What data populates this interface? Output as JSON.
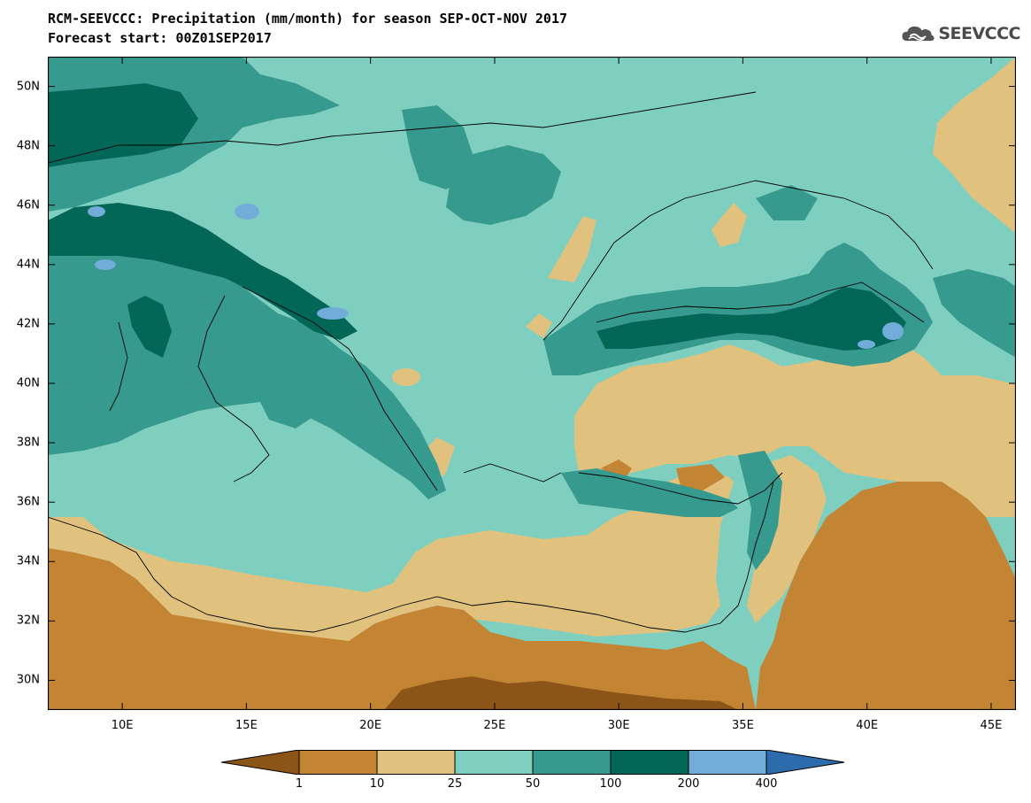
{
  "title_line1": "RCM-SEEVCCC: Precipitation (mm/month) for season SEP-OCT-NOV 2017",
  "title_line2": "Forecast start: 00Z01SEP2017",
  "logo_text": "SEEVCCC",
  "map": {
    "lon_range": [
      7,
      46
    ],
    "lat_range": [
      29,
      51
    ],
    "lat_ticks": [
      {
        "value": 50,
        "label": "50N"
      },
      {
        "value": 48,
        "label": "48N"
      },
      {
        "value": 46,
        "label": "46N"
      },
      {
        "value": 44,
        "label": "44N"
      },
      {
        "value": 42,
        "label": "42N"
      },
      {
        "value": 40,
        "label": "40N"
      },
      {
        "value": 38,
        "label": "38N"
      },
      {
        "value": 36,
        "label": "36N"
      },
      {
        "value": 34,
        "label": "34N"
      },
      {
        "value": 32,
        "label": "32N"
      },
      {
        "value": 30,
        "label": "30N"
      }
    ],
    "lon_ticks": [
      {
        "value": 10,
        "label": "10E"
      },
      {
        "value": 15,
        "label": "15E"
      },
      {
        "value": 20,
        "label": "20E"
      },
      {
        "value": 25,
        "label": "25E"
      },
      {
        "value": 30,
        "label": "30E"
      },
      {
        "value": 35,
        "label": "35E"
      },
      {
        "value": 40,
        "label": "40E"
      },
      {
        "value": 45,
        "label": "45E"
      }
    ]
  },
  "colorbar": {
    "colors": [
      "#8c5518",
      "#c38434",
      "#e0c27e",
      "#7fcfc0",
      "#379a8e",
      "#036758",
      "#72acd8",
      "#2c6cad"
    ],
    "labels": [
      "1",
      "10",
      "25",
      "50",
      "100",
      "200",
      "400"
    ]
  }
}
